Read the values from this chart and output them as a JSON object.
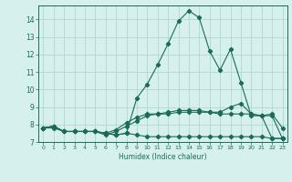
{
  "xlabel": "Humidex (Indice chaleur)",
  "x": [
    0,
    1,
    2,
    3,
    4,
    5,
    6,
    7,
    8,
    9,
    10,
    11,
    12,
    13,
    14,
    15,
    16,
    17,
    18,
    19,
    20,
    21,
    22,
    23
  ],
  "line1": [
    7.8,
    7.9,
    7.6,
    7.6,
    7.6,
    7.6,
    7.5,
    7.4,
    7.5,
    9.5,
    10.3,
    11.4,
    12.6,
    13.9,
    14.5,
    14.1,
    12.2,
    11.1,
    12.3,
    10.4,
    8.5,
    8.5,
    8.6,
    7.8
  ],
  "line2": [
    7.8,
    7.9,
    7.6,
    7.6,
    7.6,
    7.6,
    7.5,
    7.7,
    8.1,
    8.4,
    8.6,
    8.6,
    8.6,
    8.7,
    8.7,
    8.7,
    8.7,
    8.6,
    8.6,
    8.6,
    8.6,
    8.5,
    7.2,
    7.2
  ],
  "line3": [
    7.8,
    7.8,
    7.6,
    7.6,
    7.6,
    7.6,
    7.4,
    7.6,
    7.9,
    8.2,
    8.5,
    8.6,
    8.7,
    8.8,
    8.8,
    8.8,
    8.7,
    8.7,
    9.0,
    9.2,
    8.6,
    8.5,
    8.5,
    7.2
  ],
  "line4": [
    7.8,
    7.9,
    7.6,
    7.6,
    7.6,
    7.6,
    7.5,
    7.4,
    7.5,
    7.4,
    7.3,
    7.3,
    7.3,
    7.3,
    7.3,
    7.3,
    7.3,
    7.3,
    7.3,
    7.3,
    7.3,
    7.3,
    7.2,
    7.2
  ],
  "line_color": "#1a6b5a",
  "bg_color": "#d6f0ed",
  "grid_color": "#b0d8d0",
  "ylim": [
    7,
    14.8
  ],
  "yticks": [
    7,
    8,
    9,
    10,
    11,
    12,
    13,
    14
  ],
  "xlim": [
    -0.5,
    23.5
  ],
  "xtick_labels": [
    "0",
    "1",
    "2",
    "3",
    "4",
    "5",
    "6",
    "7",
    "8",
    "9",
    "10",
    "11",
    "12",
    "13",
    "14",
    "15",
    "16",
    "17",
    "18",
    "19",
    "20",
    "21",
    "22",
    "23"
  ]
}
